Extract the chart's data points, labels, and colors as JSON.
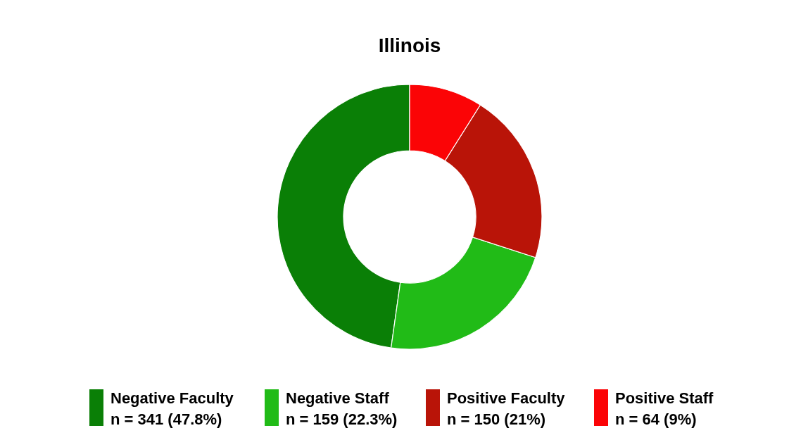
{
  "chart_data": {
    "type": "donut",
    "title": "Illinois",
    "categories": [
      "Negative Faculty",
      "Negative Staff",
      "Positive Faculty",
      "Positive Staff"
    ],
    "values": [
      341,
      159,
      150,
      64
    ],
    "value_labels": [
      "n = 341 (47.8%)",
      "n = 159 (22.3%)",
      "n = 150 (21%)",
      "n = 64 (9%)"
    ],
    "colors": [
      "#0a7f06",
      "#21bb17",
      "#b91408",
      "#fb0406"
    ],
    "legend": "bottom"
  }
}
